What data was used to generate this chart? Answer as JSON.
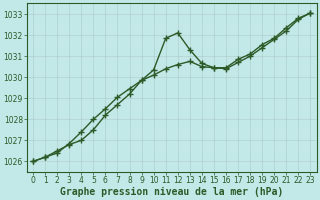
{
  "title": "Graphe pression niveau de la mer (hPa)",
  "bg_color": "#c2e8e8",
  "line_color": "#2d5a27",
  "grid_color_major": "#b0c8c8",
  "grid_color_minor": "#d0e8e8",
  "xlim": [
    -0.5,
    23.5
  ],
  "ylim": [
    1025.6,
    1033.4
  ],
  "yticks": [
    1026,
    1027,
    1028,
    1029,
    1030,
    1031,
    1032,
    1033
  ],
  "xticks": [
    0,
    1,
    2,
    3,
    4,
    5,
    6,
    7,
    8,
    9,
    10,
    11,
    12,
    13,
    14,
    15,
    16,
    17,
    18,
    19,
    20,
    21,
    22,
    23
  ],
  "series1_x": [
    0,
    1,
    2,
    3,
    4,
    5,
    6,
    7,
    8,
    9,
    10,
    11,
    12,
    13,
    14,
    15,
    16,
    17,
    18,
    19,
    20,
    21,
    22,
    23
  ],
  "series1_y": [
    1026.0,
    1026.2,
    1026.5,
    1026.8,
    1027.0,
    1027.5,
    1028.2,
    1028.7,
    1029.2,
    1029.85,
    1030.35,
    1031.85,
    1032.1,
    1031.3,
    1030.65,
    1030.45,
    1030.45,
    1030.85,
    1031.1,
    1031.55,
    1031.85,
    1032.35,
    1032.8,
    1033.05
  ],
  "series2_x": [
    0,
    1,
    2,
    3,
    4,
    5,
    6,
    7,
    8,
    9,
    10,
    11,
    12,
    13,
    14,
    15,
    16,
    17,
    18,
    19,
    20,
    21,
    22,
    23
  ],
  "series2_y": [
    1026.0,
    1026.2,
    1026.4,
    1026.85,
    1027.4,
    1028.0,
    1028.5,
    1029.05,
    1029.45,
    1029.85,
    1030.1,
    1030.4,
    1030.6,
    1030.75,
    1030.5,
    1030.45,
    1030.4,
    1030.7,
    1031.0,
    1031.4,
    1031.8,
    1032.2,
    1032.75,
    1033.05
  ],
  "marker": "+",
  "marker_size": 5,
  "line_width": 1.0,
  "tick_fontsize": 5.5,
  "label_fontsize": 7.0,
  "label_fontweight": "bold"
}
